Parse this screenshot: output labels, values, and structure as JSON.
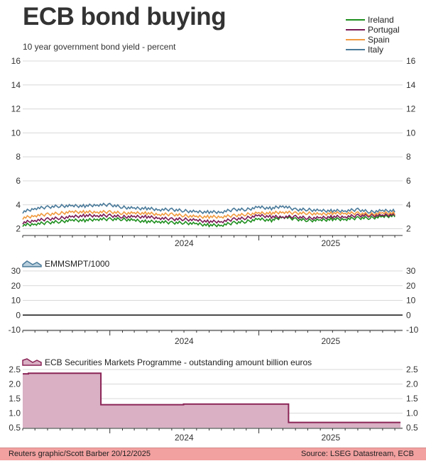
{
  "header": {
    "title": "ECB bond buying",
    "subtitle": "10 year government bond yield - percent"
  },
  "footer": {
    "credit": "Reuters graphic/Scott Barber 20/12/2025",
    "source": "Source: LSEG Datastream, ECB"
  },
  "colors": {
    "ireland": "#1e8f1e",
    "portugal": "#7a1a55",
    "spain": "#f09a3e",
    "italy": "#4a7a9a",
    "smp_fill": "#d9b0c4",
    "smp_line": "#8a2456",
    "footer_band": "#f2a0a0"
  },
  "chart_data": [
    {
      "type": "line",
      "title": "ECB bond buying",
      "subtitle": "10 year government bond yield - percent",
      "ylim": [
        1.5,
        16
      ],
      "yticks": [
        2,
        4,
        6,
        8,
        10,
        12,
        14,
        16
      ],
      "xlim": [
        "2023-06-01",
        "2025-12-20"
      ],
      "xlabels": [
        "2024",
        "2025"
      ],
      "grid": true,
      "legend_position": "top-right",
      "x": [
        "2023-06",
        "2023-07",
        "2023-08",
        "2023-09",
        "2023-10",
        "2023-11",
        "2023-12",
        "2024-01",
        "2024-02",
        "2024-03",
        "2024-04",
        "2024-05",
        "2024-06",
        "2024-07",
        "2024-08",
        "2024-09",
        "2024-10",
        "2024-11",
        "2024-12",
        "2025-01",
        "2025-02",
        "2025-03",
        "2025-04",
        "2025-05",
        "2025-06",
        "2025-07",
        "2025-08",
        "2025-09",
        "2025-10",
        "2025-11",
        "2025-12"
      ],
      "series": [
        {
          "name": "Ireland",
          "values": [
            2.3,
            2.4,
            2.5,
            2.6,
            2.7,
            2.7,
            2.8,
            2.8,
            2.8,
            2.7,
            2.6,
            2.6,
            2.5,
            2.5,
            2.4,
            2.3,
            2.3,
            2.5,
            2.6,
            2.8,
            2.7,
            3.0,
            2.8,
            2.7,
            2.7,
            2.8,
            2.8,
            2.9,
            2.9,
            3.0,
            3.1
          ]
        },
        {
          "name": "Portugal",
          "values": [
            2.5,
            2.7,
            2.8,
            2.9,
            3.0,
            3.1,
            3.1,
            3.1,
            3.0,
            3.0,
            3.0,
            2.9,
            2.8,
            2.8,
            2.7,
            2.6,
            2.6,
            2.8,
            2.9,
            3.1,
            3.0,
            3.0,
            3.0,
            2.9,
            2.9,
            3.0,
            3.0,
            3.1,
            3.1,
            3.1,
            3.2
          ]
        },
        {
          "name": "Spain",
          "values": [
            2.9,
            3.1,
            3.2,
            3.3,
            3.4,
            3.4,
            3.4,
            3.4,
            3.3,
            3.3,
            3.3,
            3.2,
            3.2,
            3.1,
            3.0,
            3.0,
            3.0,
            3.1,
            3.2,
            3.3,
            3.3,
            3.4,
            3.3,
            3.3,
            3.2,
            3.3,
            3.3,
            3.3,
            3.2,
            3.3,
            3.3
          ]
        },
        {
          "name": "Italy",
          "values": [
            3.4,
            3.7,
            3.8,
            3.9,
            3.9,
            3.9,
            4.0,
            4.0,
            3.8,
            3.7,
            3.7,
            3.6,
            3.6,
            3.5,
            3.4,
            3.4,
            3.4,
            3.6,
            3.6,
            3.8,
            3.7,
            3.9,
            3.6,
            3.6,
            3.5,
            3.5,
            3.5,
            3.6,
            3.4,
            3.5,
            3.5
          ]
        }
      ]
    },
    {
      "type": "area",
      "title": "EMMSMPT/1000",
      "ylim": [
        -10,
        30
      ],
      "yticks": [
        -10,
        0,
        10,
        20,
        30
      ],
      "xlim": [
        "2023-06-01",
        "2025-12-20"
      ],
      "xlabels": [
        "2024",
        "2025"
      ],
      "grid": true,
      "series": [
        {
          "name": "EMMSMPT/1000",
          "x": [
            "2023-06-01",
            "2025-12-20"
          ],
          "values": [
            0,
            0
          ]
        }
      ]
    },
    {
      "type": "area",
      "title": "ECB Securities Markets Programme - outstanding amount billion euros",
      "ylim": [
        0.5,
        2.5
      ],
      "yticks": [
        0.5,
        1.0,
        1.5,
        2.0,
        2.5
      ],
      "ytick_labels": [
        "0.5",
        "1.0",
        "1.5",
        "2.0",
        "2.5"
      ],
      "xlim": [
        "2023-06-01",
        "2025-12-20"
      ],
      "xlabels": [
        "2024",
        "2025"
      ],
      "grid": true,
      "series": [
        {
          "name": "ECB Securities Markets Programme - outstanding amount billion euros",
          "x": [
            "2023-06-01",
            "2023-06-15",
            "2023-06-15",
            "2023-12-10",
            "2023-12-10",
            "2024-06-30",
            "2024-06-30",
            "2025-03-15",
            "2025-03-15",
            "2025-12-15"
          ],
          "values": [
            2.35,
            2.35,
            2.37,
            2.37,
            1.29,
            1.29,
            1.31,
            1.31,
            0.68,
            0.68
          ]
        }
      ]
    }
  ]
}
